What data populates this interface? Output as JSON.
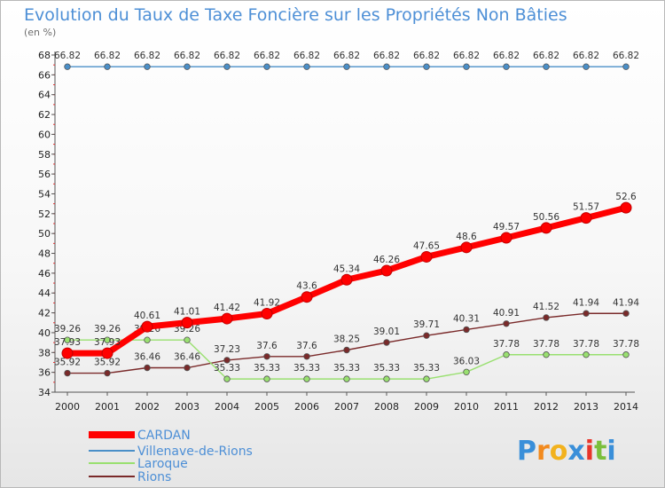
{
  "chart_data": {
    "type": "line",
    "title": "Evolution du Taux de Taxe Foncière sur les Propriétés Non Bâties",
    "subtitle": "(en %)",
    "x": [
      "2000",
      "2001",
      "2002",
      "2003",
      "2004",
      "2005",
      "2006",
      "2007",
      "2008",
      "2009",
      "2010",
      "2011",
      "2012",
      "2013",
      "2014"
    ],
    "ylim": [
      34,
      68
    ],
    "yticks": [
      34,
      36,
      38,
      40,
      42,
      44,
      46,
      48,
      50,
      52,
      54,
      56,
      58,
      60,
      62,
      64,
      66,
      68
    ],
    "grid": false,
    "legend_placement": "bottom-left",
    "series": [
      {
        "name": "CARDAN",
        "color": "#ff0000",
        "values": [
          37.93,
          37.93,
          40.61,
          41.01,
          41.42,
          41.92,
          43.6,
          45.34,
          46.26,
          47.65,
          48.6,
          49.57,
          50.56,
          51.57,
          52.6
        ],
        "labels": [
          "37.93",
          "37.93",
          "40.61",
          "41.01",
          "41.42",
          "41.92",
          "43.6",
          "45.34",
          "46.26",
          "47.65",
          "48.6",
          "49.57",
          "50.56",
          "51.57",
          "52.6"
        ]
      },
      {
        "name": "Villenave-de-Rions",
        "color": "#4a8fc8",
        "values": [
          66.82,
          66.82,
          66.82,
          66.82,
          66.82,
          66.82,
          66.82,
          66.82,
          66.82,
          66.82,
          66.82,
          66.82,
          66.82,
          66.82,
          66.82
        ],
        "labels": [
          "66.82",
          "66.82",
          "66.82",
          "66.82",
          "66.82",
          "66.82",
          "66.82",
          "66.82",
          "66.82",
          "66.82",
          "66.82",
          "66.82",
          "66.82",
          "66.82",
          "66.82"
        ]
      },
      {
        "name": "Laroque",
        "color": "#99e070",
        "values": [
          39.26,
          39.26,
          39.26,
          39.26,
          35.33,
          35.33,
          35.33,
          35.33,
          35.33,
          35.33,
          36.03,
          37.78,
          37.78,
          37.78,
          37.78
        ],
        "labels": [
          "39.26",
          "39.26",
          "39.26",
          "39.26",
          "35.33",
          "35.33",
          "35.33",
          "35.33",
          "35.33",
          "35.33",
          "36.03",
          "37.78",
          "37.78",
          "37.78",
          "37.78"
        ]
      },
      {
        "name": "Rions",
        "color": "#7a2a2a",
        "values": [
          35.92,
          35.92,
          36.46,
          36.46,
          37.23,
          37.6,
          37.6,
          38.25,
          39.01,
          39.71,
          40.31,
          40.91,
          41.52,
          41.94,
          41.94
        ],
        "labels": [
          "35.92",
          "35.92",
          "36.46",
          "36.46",
          "37.23",
          "37.6",
          "37.6",
          "38.25",
          "39.01",
          "39.71",
          "40.31",
          "40.91",
          "41.52",
          "41.94",
          "41.94"
        ]
      }
    ]
  },
  "logo": {
    "text": "Proxiti",
    "letter_colors": [
      "#3a8fd9",
      "#f28a1e",
      "#f2b21e",
      "#3a8fd9",
      "#e8352b",
      "#7bbf3c",
      "#3a8fd9"
    ]
  }
}
